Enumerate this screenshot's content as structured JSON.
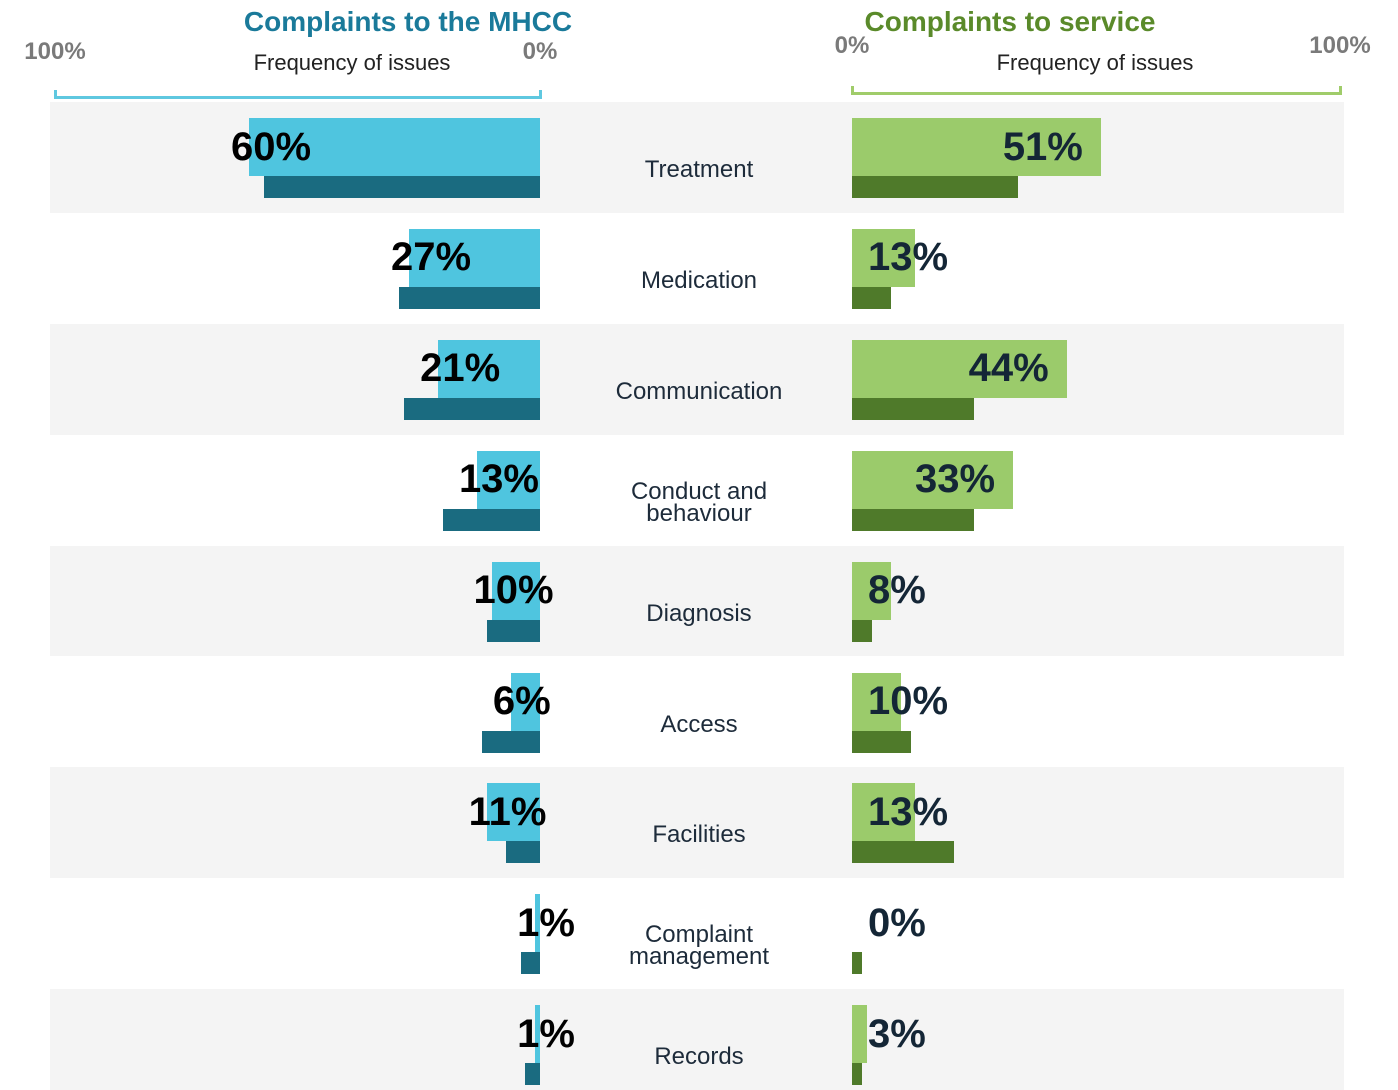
{
  "chart_data": {
    "type": "bar",
    "categories": [
      "Treatment",
      "Medication",
      "Communication",
      "Conduct and behaviour",
      "Diagnosis",
      "Access",
      "Facilities",
      "Complaint management",
      "Records"
    ],
    "left": {
      "title": "Complaints to the MHCC",
      "axis_label": "Frequency of issues",
      "xlim": [
        100,
        0
      ],
      "xticks": [
        {
          "value": 100,
          "label": "100%"
        },
        {
          "value": 0,
          "label": "0%"
        }
      ],
      "series": [
        {
          "color": "#4fc5df",
          "values": [
            60,
            27,
            21,
            13,
            10,
            6,
            11,
            1,
            1
          ],
          "value_labels": [
            "60%",
            "27%",
            "21%",
            "13%",
            "10%",
            "6%",
            "11%",
            "1%",
            "1%"
          ]
        },
        {
          "color": "#1a6b80",
          "values": [
            57,
            29,
            28,
            20,
            11,
            12,
            7,
            4,
            3
          ]
        }
      ]
    },
    "right": {
      "title": "Complaints to service",
      "axis_label": "Frequency of issues",
      "xlim": [
        0,
        100
      ],
      "xticks": [
        {
          "value": 0,
          "label": "0%"
        },
        {
          "value": 100,
          "label": "100%"
        }
      ],
      "series": [
        {
          "color": "#9bcb6b",
          "values": [
            51,
            13,
            44,
            33,
            8,
            10,
            13,
            0,
            3
          ],
          "value_labels": [
            "51%",
            "13%",
            "44%",
            "33%",
            "8%",
            "10%",
            "13%",
            "0%",
            "3%"
          ]
        },
        {
          "color": "#4f7a2a",
          "values": [
            34,
            8,
            25,
            25,
            4,
            12,
            21,
            2,
            2
          ]
        }
      ]
    }
  }
}
